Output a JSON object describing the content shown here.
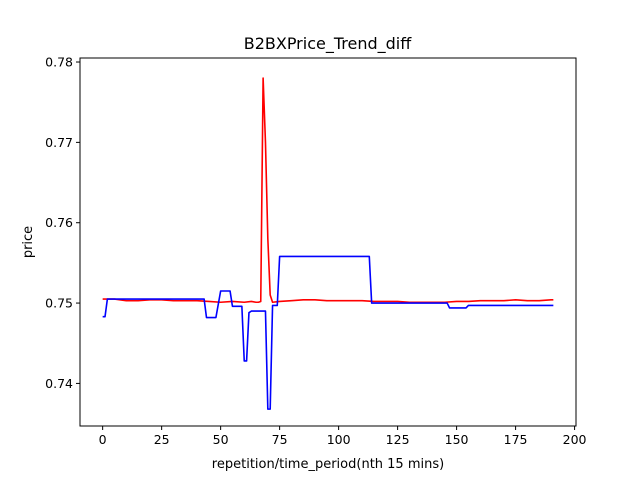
{
  "chart_data": {
    "type": "line",
    "title": "B2BXPrice_Trend_diff",
    "xlabel": "repetition/time_period(nth 15 mins)",
    "ylabel": "price",
    "xlim": [
      -9.6,
      200.6
    ],
    "ylim": [
      0.7347,
      0.7805
    ],
    "xticks": [
      0,
      25,
      50,
      75,
      100,
      125,
      150,
      175,
      200
    ],
    "yticks": [
      0.74,
      0.75,
      0.76,
      0.77,
      0.78
    ],
    "ytick_labels": [
      "0.74",
      "0.75",
      "0.76",
      "0.77",
      "0.78"
    ],
    "grid": false,
    "legend": null,
    "series": [
      {
        "color": "#ff0000",
        "x": [
          0,
          5,
          10,
          15,
          20,
          25,
          30,
          35,
          40,
          45,
          50,
          55,
          60,
          63,
          65,
          66,
          67,
          68,
          69,
          70,
          71,
          72,
          75,
          80,
          85,
          90,
          95,
          100,
          105,
          110,
          115,
          120,
          125,
          130,
          135,
          140,
          145,
          150,
          155,
          160,
          165,
          170,
          175,
          180,
          185,
          190,
          191
        ],
        "values": [
          0.7505,
          0.7505,
          0.7503,
          0.7503,
          0.7504,
          0.7504,
          0.7503,
          0.7503,
          0.7503,
          0.7502,
          0.7501,
          0.7502,
          0.7501,
          0.7502,
          0.7501,
          0.7501,
          0.7502,
          0.778,
          0.77,
          0.758,
          0.751,
          0.7501,
          0.7502,
          0.7503,
          0.7504,
          0.7504,
          0.7503,
          0.7503,
          0.7503,
          0.7503,
          0.7502,
          0.7502,
          0.7502,
          0.7501,
          0.7501,
          0.7501,
          0.7501,
          0.7502,
          0.7502,
          0.7503,
          0.7503,
          0.7503,
          0.7504,
          0.7503,
          0.7503,
          0.7504,
          0.7504
        ]
      },
      {
        "color": "#0000ff",
        "x": [
          0,
          1,
          2,
          43,
          44,
          48,
          50,
          54,
          55,
          59,
          60,
          61,
          62,
          63,
          69,
          70,
          71,
          72,
          74,
          75,
          113,
          114,
          146,
          147,
          154,
          155,
          191
        ],
        "values": [
          0.7483,
          0.7483,
          0.7505,
          0.7505,
          0.7482,
          0.7482,
          0.7515,
          0.7515,
          0.7496,
          0.7496,
          0.7428,
          0.7428,
          0.7488,
          0.749,
          0.749,
          0.7368,
          0.7368,
          0.7497,
          0.7497,
          0.7558,
          0.7558,
          0.75,
          0.75,
          0.7494,
          0.7494,
          0.7497,
          0.7497
        ]
      }
    ]
  }
}
